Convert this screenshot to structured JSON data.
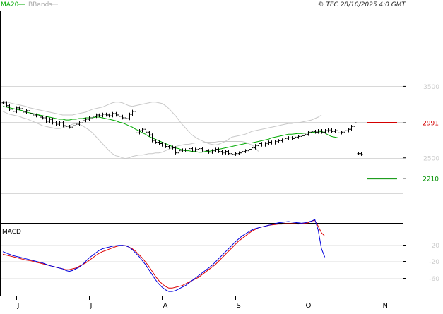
{
  "header": {
    "legend_ma": "MA20",
    "legend_bands": "BBands",
    "copyright": "© TEC 28/10/2025 4:0 GMT"
  },
  "price_panel": {
    "y_ticks": [
      {
        "value": 3500,
        "label": "3500"
      },
      {
        "value": 2500,
        "label": "2500"
      }
    ],
    "gridline_values": [
      3500,
      3000,
      2500,
      2000
    ],
    "ylim": [
      1590,
      4550
    ],
    "levels": [
      {
        "name": "resistance",
        "value": 2991,
        "label": "2991",
        "color": "#d40000"
      },
      {
        "name": "support",
        "value": 2210,
        "label": "2210",
        "color": "#009000"
      }
    ]
  },
  "macd_panel": {
    "title": "MACD",
    "y_ticks": [
      {
        "value": 20,
        "label": "20"
      },
      {
        "value": -20,
        "label": "-20"
      },
      {
        "value": -60,
        "label": "-60"
      }
    ],
    "ylim": [
      -102,
      70
    ]
  },
  "x_axis": {
    "ticks": [
      {
        "index": 4,
        "label": "J"
      },
      {
        "index": 26,
        "label": "J"
      },
      {
        "index": 48,
        "label": "A"
      },
      {
        "index": 70,
        "label": "S"
      },
      {
        "index": 91,
        "label": "O"
      },
      {
        "index": 114,
        "label": "N"
      }
    ]
  },
  "colors": {
    "ma": "#00aa00",
    "bands": "#c8c8c8",
    "bars": "#000000",
    "macd_line": "#0000dd",
    "signal_line": "#dd0000",
    "grid": "#d8d8d8"
  },
  "chart_data": {
    "type": "ohlc",
    "n_slots": 120,
    "price": {
      "first_index": 0,
      "close": [
        3270,
        3230,
        3180,
        3150,
        3200,
        3190,
        3140,
        3160,
        3120,
        3100,
        3090,
        3070,
        3060,
        3010,
        3040,
        2990,
        2970,
        2990,
        2950,
        2940,
        2930,
        2950,
        2970,
        2990,
        3020,
        3040,
        3060,
        3080,
        3100,
        3090,
        3110,
        3100,
        3090,
        3120,
        3100,
        3080,
        3060,
        3050,
        3110,
        3150,
        2850,
        2880,
        2900,
        2860,
        2820,
        2740,
        2720,
        2700,
        2680,
        2660,
        2650,
        2640,
        2570,
        2600,
        2610,
        2610,
        2630,
        2610,
        2620,
        2630,
        2610,
        2600,
        2580,
        2600,
        2620,
        2590,
        2570,
        2590,
        2560,
        2550,
        2560,
        2570,
        2590,
        2600,
        2620,
        2640,
        2670,
        2700,
        2680,
        2700,
        2720,
        2710,
        2730,
        2740,
        2750,
        2770,
        2780,
        2770,
        2790,
        2800,
        2810,
        2830,
        2860,
        2870,
        2860,
        2880,
        2860,
        2880,
        2890,
        2870,
        2880,
        2850,
        2860,
        2880,
        2900,
        2940,
        2990
      ],
      "ma20": [
        3220,
        3210,
        3200,
        3190,
        3180,
        3170,
        3160,
        3140,
        3130,
        3120,
        3110,
        3100,
        3090,
        3080,
        3070,
        3060,
        3050,
        3040,
        3040,
        3030,
        3030,
        3040,
        3040,
        3050,
        3050,
        3060,
        3060,
        3060,
        3070,
        3070,
        3060,
        3050,
        3040,
        3030,
        3020,
        3000,
        2990,
        2970,
        2950,
        2930,
        2900,
        2880,
        2850,
        2830,
        2800,
        2780,
        2760,
        2740,
        2720,
        2700,
        2680,
        2660,
        2640,
        2630,
        2610,
        2600,
        2600,
        2590,
        2590,
        2580,
        2580,
        2590,
        2590,
        2600,
        2610,
        2620,
        2630,
        2640,
        2650,
        2660,
        2670,
        2680,
        2690,
        2700,
        2710,
        2710,
        2720,
        2730,
        2740,
        2750,
        2760,
        2780,
        2790,
        2800,
        2810,
        2820,
        2830,
        2830,
        2835,
        2840,
        2840,
        2845,
        2850,
        2855,
        2860,
        2860,
        2870,
        2850,
        2820,
        2800,
        2790,
        2780
      ],
      "bb_upper": [
        3290,
        3285,
        3270,
        3260,
        3250,
        3240,
        3230,
        3220,
        3200,
        3190,
        3180,
        3170,
        3160,
        3150,
        3140,
        3130,
        3120,
        3110,
        3100,
        3100,
        3100,
        3100,
        3110,
        3120,
        3130,
        3140,
        3160,
        3180,
        3190,
        3200,
        3210,
        3230,
        3250,
        3270,
        3280,
        3280,
        3270,
        3250,
        3230,
        3220,
        3230,
        3240,
        3250,
        3260,
        3270,
        3280,
        3280,
        3270,
        3260,
        3230,
        3190,
        3140,
        3090,
        3030,
        2970,
        2920,
        2870,
        2820,
        2790,
        2760,
        2740,
        2720,
        2700,
        2690,
        2680,
        2690,
        2710,
        2730,
        2760,
        2790,
        2800,
        2810,
        2820,
        2830,
        2850,
        2870,
        2880,
        2890,
        2900,
        2910,
        2920,
        2930,
        2940,
        2950,
        2960,
        2970,
        2980,
        2980,
        2990,
        2990,
        3000,
        3010,
        3020,
        3030,
        3050,
        3070,
        3100
      ],
      "bb_lower": [
        3150,
        3130,
        3110,
        3100,
        3090,
        3080,
        3060,
        3050,
        3030,
        3010,
        2990,
        2970,
        2950,
        2940,
        2930,
        2920,
        2910,
        2910,
        2920,
        2940,
        2950,
        2970,
        2980,
        2970,
        2950,
        2920,
        2890,
        2850,
        2800,
        2750,
        2700,
        2650,
        2600,
        2560,
        2530,
        2520,
        2500,
        2490,
        2500,
        2520,
        2530,
        2540,
        2540,
        2550,
        2560,
        2560,
        2570,
        2570,
        2580,
        2600,
        2620,
        2640,
        2660,
        2670,
        2680,
        2690,
        2690,
        2700,
        2710,
        2710,
        2710,
        2720,
        2720,
        2720,
        2720,
        2730,
        2730,
        2730,
        2730,
        2730,
        2730,
        2730,
        2730,
        2720,
        2700,
        2680,
        2650,
        2590
      ]
    },
    "price_tail": {
      "first_index": 107,
      "close": [
        2560,
        2550
      ]
    },
    "macd_start_index": 0,
    "macd": [
      3,
      0,
      -3,
      -6,
      -8,
      -10,
      -12,
      -14,
      -16,
      -18,
      -20,
      -22,
      -24,
      -27,
      -30,
      -32,
      -34,
      -36,
      -38,
      -42,
      -44,
      -42,
      -38,
      -34,
      -28,
      -20,
      -12,
      -6,
      0,
      6,
      10,
      12,
      14,
      16,
      17,
      18,
      18,
      17,
      14,
      8,
      0,
      -8,
      -18,
      -28,
      -40,
      -52,
      -64,
      -74,
      -82,
      -88,
      -92,
      -92,
      -90,
      -86,
      -82,
      -78,
      -72,
      -66,
      -60,
      -54,
      -48,
      -42,
      -36,
      -30,
      -22,
      -14,
      -6,
      2,
      10,
      18,
      26,
      33,
      40,
      45,
      50,
      55,
      58,
      60,
      62,
      64,
      66,
      68,
      70,
      72,
      73,
      74,
      75,
      74,
      73,
      72,
      71,
      72,
      74,
      76,
      80,
      55,
      10,
      -10
    ],
    "signal": [
      -3,
      -5,
      -7,
      -9,
      -11,
      -13,
      -15,
      -17,
      -18,
      -20,
      -22,
      -24,
      -26,
      -28,
      -30,
      -32,
      -34,
      -36,
      -38,
      -40,
      -40,
      -38,
      -36,
      -32,
      -28,
      -24,
      -18,
      -12,
      -6,
      -1,
      3,
      6,
      9,
      12,
      15,
      17,
      18,
      17,
      14,
      10,
      4,
      -4,
      -12,
      -22,
      -32,
      -44,
      -56,
      -66,
      -74,
      -80,
      -84,
      -84,
      -82,
      -80,
      -78,
      -74,
      -70,
      -66,
      -62,
      -58,
      -52,
      -46,
      -40,
      -34,
      -28,
      -20,
      -12,
      -4,
      4,
      12,
      20,
      28,
      34,
      40,
      46,
      52,
      56,
      60,
      62,
      64,
      66,
      67,
      68,
      69,
      69,
      70,
      70,
      70,
      70,
      69,
      70,
      71,
      72,
      76,
      78,
      64,
      48,
      40
    ]
  }
}
